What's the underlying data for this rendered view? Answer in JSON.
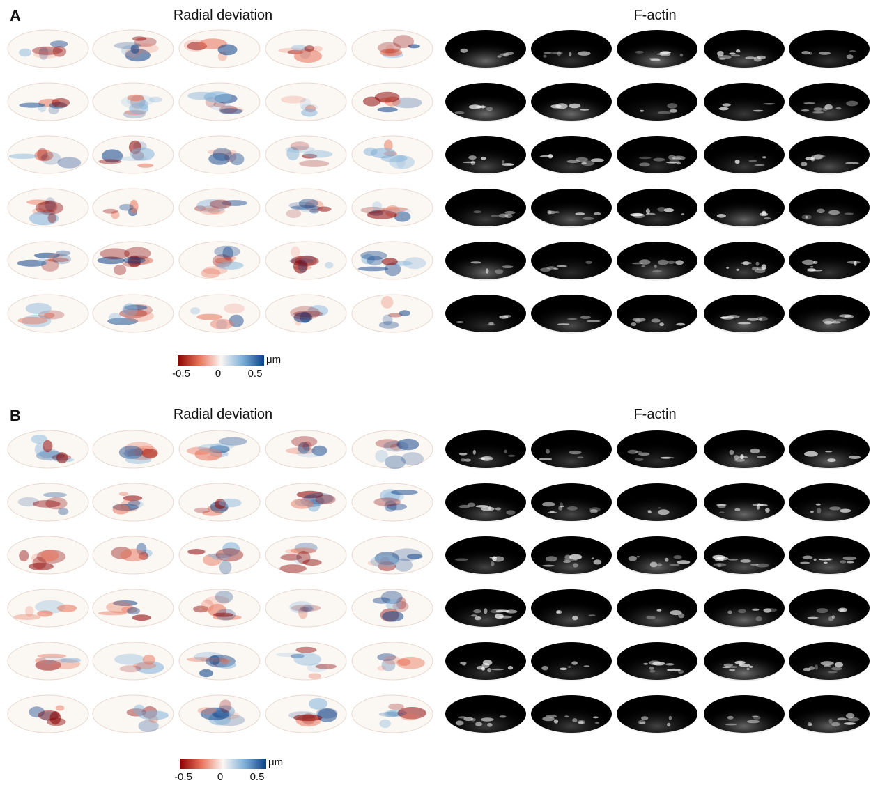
{
  "panels": [
    {
      "label": "A",
      "left_title": "Radial deviation",
      "right_title": "F-actin",
      "colorbar": {
        "ticks": [
          "-0.5",
          "0",
          "0.5"
        ],
        "unit": "μm"
      }
    },
    {
      "label": "B",
      "left_title": "Radial deviation",
      "right_title": "F-actin",
      "colorbar": {
        "ticks": [
          "-0.5",
          "0",
          "0.5"
        ],
        "unit": "μm"
      }
    }
  ],
  "grid": {
    "rows_per_panel": 6,
    "cols_per_group": 5
  },
  "colors": {
    "neg": "#8b0000",
    "neg_mid": "#e8735a",
    "zero": "#fbf7f3",
    "pos_mid": "#7fb1d9",
    "pos": "#0b3f86",
    "actin_bg": "#000000"
  }
}
